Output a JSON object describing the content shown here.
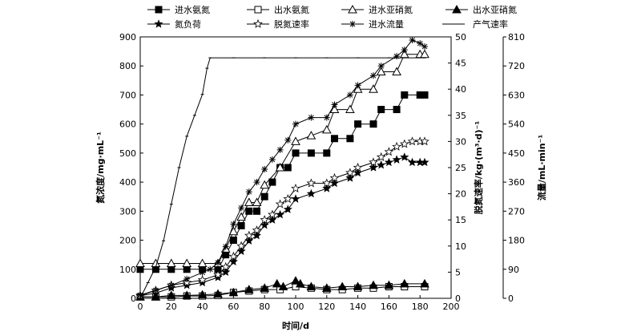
{
  "chart_data": {
    "type": "line",
    "xlabel": "时间/d",
    "ylabel_left": "氮浓度/mg·mL⁻¹",
    "ylabel_right1": "脱氮速率/kg·(m³·d)⁻¹",
    "ylabel_right2": "流量/mL·min⁻¹",
    "xlim": [
      0,
      200
    ],
    "ylim_left": [
      0,
      900
    ],
    "ylim_right1": [
      0,
      50
    ],
    "ylim_right2": [
      0,
      810
    ],
    "x_ticks": [
      "0",
      "20",
      "40",
      "60",
      "80",
      "100",
      "120",
      "140",
      "160",
      "180",
      "200"
    ],
    "y_left_ticks": [
      "0",
      "100",
      "200",
      "300",
      "400",
      "500",
      "600",
      "700",
      "800",
      "900"
    ],
    "y_right1_ticks": [
      "0",
      "5",
      "10",
      "15",
      "20",
      "25",
      "30",
      "35",
      "40",
      "45",
      "50"
    ],
    "y_right2_ticks": [
      "0",
      "90",
      "180",
      "270",
      "360",
      "450",
      "540",
      "630",
      "720",
      "810"
    ],
    "legend": [
      {
        "name": "进水氨氮",
        "marker": "square-filled"
      },
      {
        "name": "出水氨氮",
        "marker": "square-open"
      },
      {
        "name": "进水亚硝氮",
        "marker": "triangle-open"
      },
      {
        "name": "出水亚硝氮",
        "marker": "triangle-filled"
      },
      {
        "name": "氮负荷",
        "marker": "star-filled"
      },
      {
        "name": "脱氮速率",
        "marker": "star-open"
      },
      {
        "name": "进水流量",
        "marker": "asterisk"
      },
      {
        "name": "产气速率",
        "marker": "line"
      }
    ],
    "series": [
      {
        "name": "进水氨氮",
        "axis": "left",
        "x": [
          0,
          10,
          20,
          30,
          40,
          50,
          55,
          60,
          65,
          70,
          75,
          80,
          85,
          90,
          95,
          100,
          110,
          120,
          125,
          135,
          140,
          150,
          155,
          165,
          170,
          180,
          183
        ],
        "y": [
          100,
          100,
          100,
          100,
          100,
          100,
          150,
          200,
          250,
          300,
          300,
          350,
          400,
          450,
          450,
          500,
          500,
          500,
          550,
          550,
          600,
          600,
          650,
          650,
          700,
          700,
          700
        ]
      },
      {
        "name": "出水氨氮",
        "axis": "left",
        "x": [
          0,
          10,
          20,
          30,
          40,
          50,
          60,
          70,
          80,
          90,
          100,
          110,
          120,
          130,
          140,
          150,
          160,
          170,
          183
        ],
        "y": [
          5,
          5,
          5,
          8,
          8,
          10,
          20,
          25,
          30,
          30,
          40,
          35,
          30,
          30,
          35,
          35,
          40,
          40,
          40
        ]
      },
      {
        "name": "进水亚硝氮",
        "axis": "left",
        "x": [
          0,
          10,
          20,
          30,
          40,
          50,
          55,
          60,
          65,
          70,
          75,
          80,
          90,
          100,
          110,
          120,
          125,
          135,
          140,
          150,
          155,
          165,
          170,
          180,
          183
        ],
        "y": [
          120,
          120,
          120,
          120,
          120,
          120,
          170,
          230,
          280,
          330,
          330,
          390,
          450,
          540,
          560,
          580,
          650,
          650,
          720,
          720,
          780,
          780,
          840,
          840,
          840
        ]
      },
      {
        "name": "出水亚硝氮",
        "axis": "left",
        "x": [
          0,
          10,
          20,
          30,
          40,
          50,
          60,
          70,
          80,
          88,
          92,
          100,
          103,
          110,
          120,
          130,
          140,
          150,
          160,
          170,
          183
        ],
        "y": [
          5,
          5,
          10,
          10,
          12,
          15,
          20,
          30,
          35,
          50,
          40,
          60,
          50,
          40,
          35,
          40,
          40,
          45,
          45,
          50,
          50
        ]
      },
      {
        "name": "氮负荷",
        "axis": "right1",
        "x": [
          0,
          10,
          20,
          30,
          40,
          50,
          55,
          60,
          65,
          70,
          75,
          80,
          85,
          90,
          95,
          100,
          110,
          120,
          125,
          135,
          140,
          150,
          155,
          160,
          165,
          170,
          175,
          180,
          183
        ],
        "y": [
          0.5,
          1,
          2,
          2.5,
          3,
          4,
          5,
          7,
          9,
          11,
          12,
          14,
          15,
          16,
          17,
          19,
          20,
          21,
          22,
          23,
          24,
          25,
          25.5,
          26,
          26.5,
          27,
          26,
          26,
          26
        ]
      },
      {
        "name": "脱氮速率",
        "axis": "right1",
        "x": [
          0,
          10,
          20,
          30,
          40,
          50,
          55,
          60,
          65,
          70,
          75,
          80,
          85,
          90,
          95,
          100,
          110,
          120,
          125,
          135,
          140,
          150,
          155,
          160,
          165,
          170,
          175,
          180,
          183
        ],
        "y": [
          0.5,
          1.5,
          2.5,
          3,
          3.5,
          4.5,
          6,
          8,
          10,
          12,
          13,
          15,
          16,
          18,
          19,
          21,
          22,
          22,
          23,
          24,
          25,
          26,
          27,
          28,
          29,
          29.5,
          30,
          30,
          30
        ]
      },
      {
        "name": "进水流量",
        "axis": "right2",
        "x": [
          0,
          10,
          20,
          30,
          40,
          45,
          50,
          55,
          60,
          65,
          70,
          75,
          80,
          85,
          90,
          95,
          100,
          110,
          120,
          125,
          135,
          140,
          150,
          155,
          165,
          170,
          175,
          180,
          183
        ],
        "y": [
          10,
          25,
          40,
          60,
          80,
          90,
          110,
          160,
          230,
          280,
          330,
          360,
          400,
          430,
          460,
          490,
          540,
          560,
          560,
          600,
          630,
          660,
          690,
          720,
          750,
          770,
          800,
          790,
          780
        ]
      },
      {
        "name": "产气速率",
        "axis": "right1",
        "x": [
          0,
          5,
          10,
          15,
          20,
          25,
          30,
          35,
          40,
          43,
          45,
          60,
          80,
          100,
          120,
          140,
          160,
          183
        ],
        "y": [
          0,
          3,
          6,
          11,
          18,
          25,
          31,
          35,
          39,
          44,
          46,
          46,
          46,
          46,
          46,
          46,
          46,
          46
        ]
      }
    ]
  }
}
